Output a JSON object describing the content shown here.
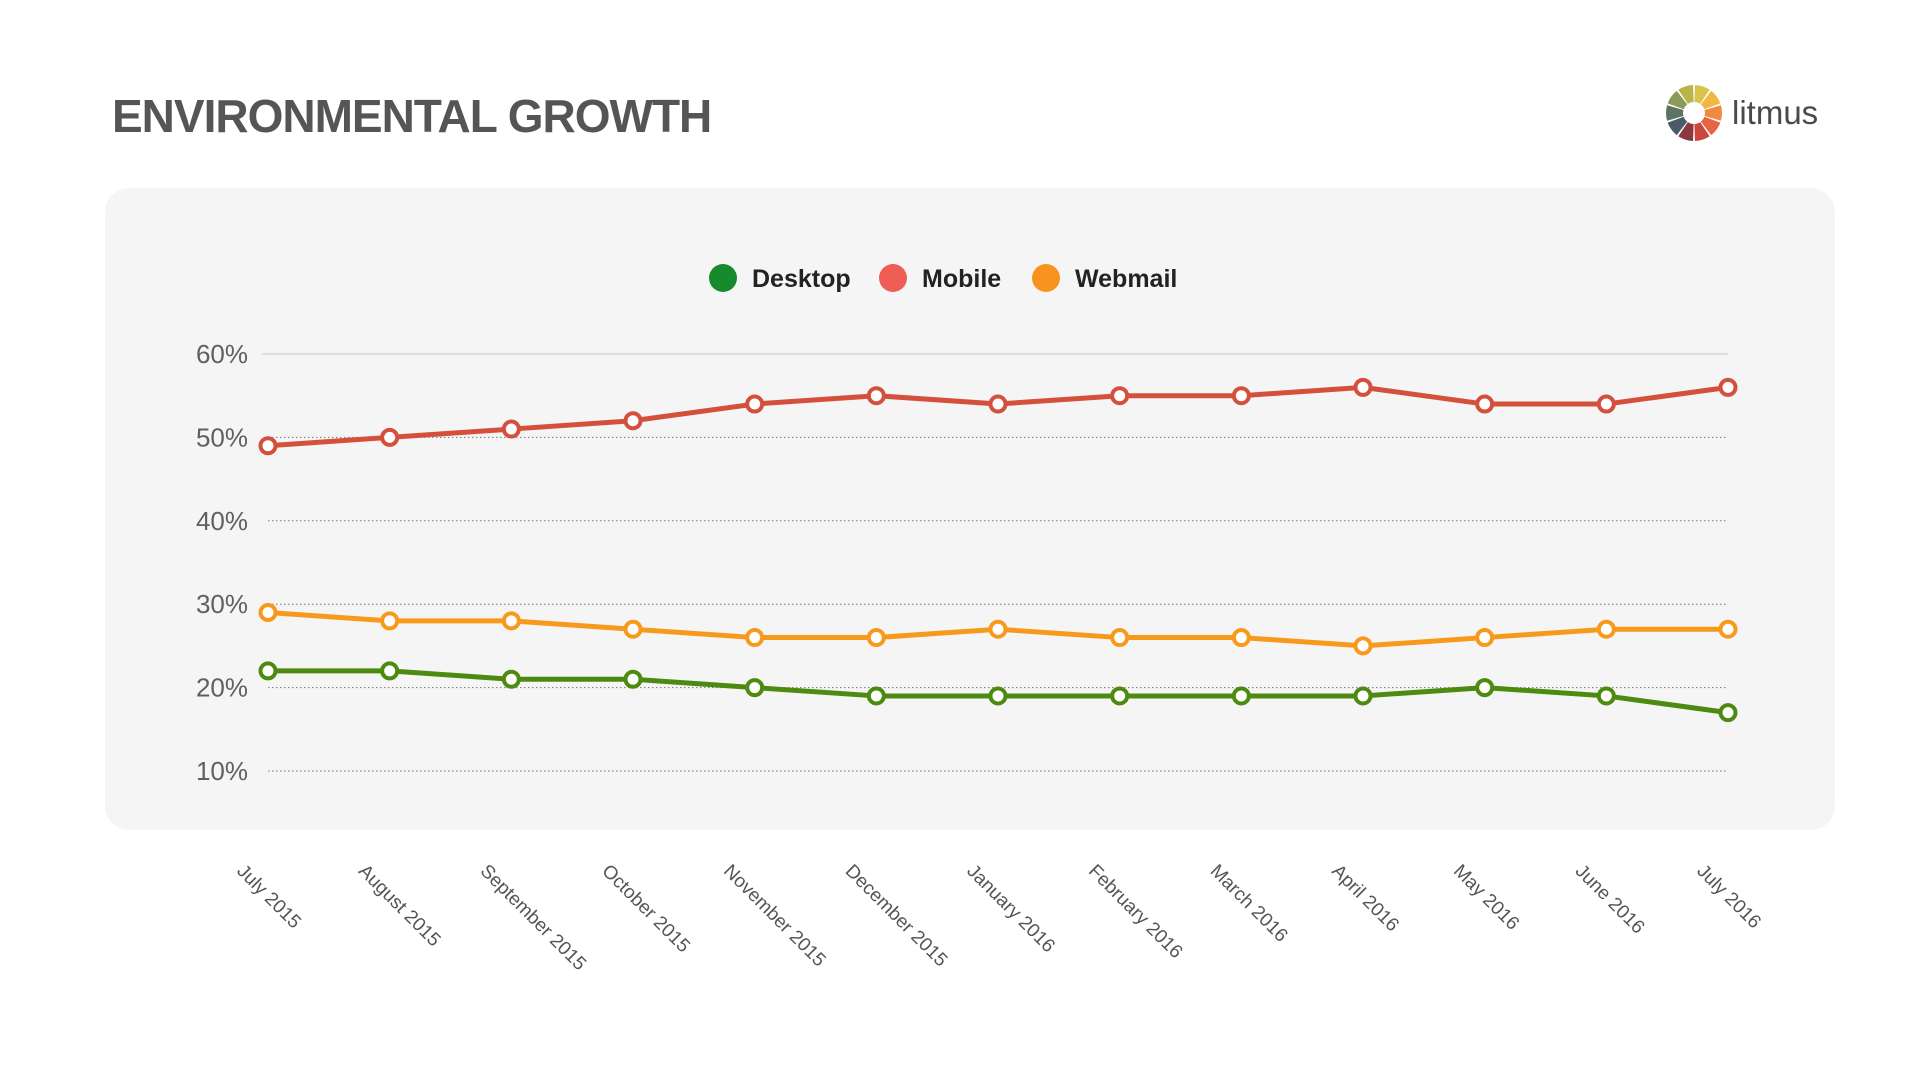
{
  "header": {
    "title": "ENVIRONMENTAL GROWTH",
    "logo_text": "litmus"
  },
  "colors": {
    "panel": "#f5f5f5",
    "desktop": "#4d8a10",
    "mobile": "#d4503c",
    "webmail": "#f79a1b",
    "legend_desktop": "#168a2c",
    "legend_mobile": "#ee5e57",
    "legend_webmail": "#f7931e",
    "text": "#555555"
  },
  "chart_data": {
    "type": "line",
    "title": "ENVIRONMENTAL GROWTH",
    "xlabel": "",
    "ylabel": "",
    "ylim": [
      10,
      60
    ],
    "yticks": [
      10,
      20,
      30,
      40,
      50,
      60
    ],
    "ytick_labels": [
      "10%",
      "20%",
      "30%",
      "40%",
      "50%",
      "60%"
    ],
    "grid": true,
    "legend_position": "top-center",
    "categories": [
      "July 2015",
      "August 2015",
      "September 2015",
      "October 2015",
      "November 2015",
      "December 2015",
      "January 2016",
      "February 2016",
      "March 2016",
      "April 2016",
      "May 2016",
      "June 2016",
      "July 2016"
    ],
    "series": [
      {
        "name": "Desktop",
        "key": "desktop",
        "values": [
          22,
          22,
          21,
          21,
          20,
          19,
          19,
          19,
          19,
          19,
          20,
          19,
          17
        ]
      },
      {
        "name": "Mobile",
        "key": "mobile",
        "values": [
          49,
          50,
          51,
          52,
          54,
          55,
          54,
          55,
          55,
          56,
          54,
          54,
          56
        ]
      },
      {
        "name": "Webmail",
        "key": "webmail",
        "values": [
          29,
          28,
          28,
          27,
          26,
          26,
          27,
          26,
          26,
          25,
          26,
          27,
          27
        ]
      }
    ]
  }
}
